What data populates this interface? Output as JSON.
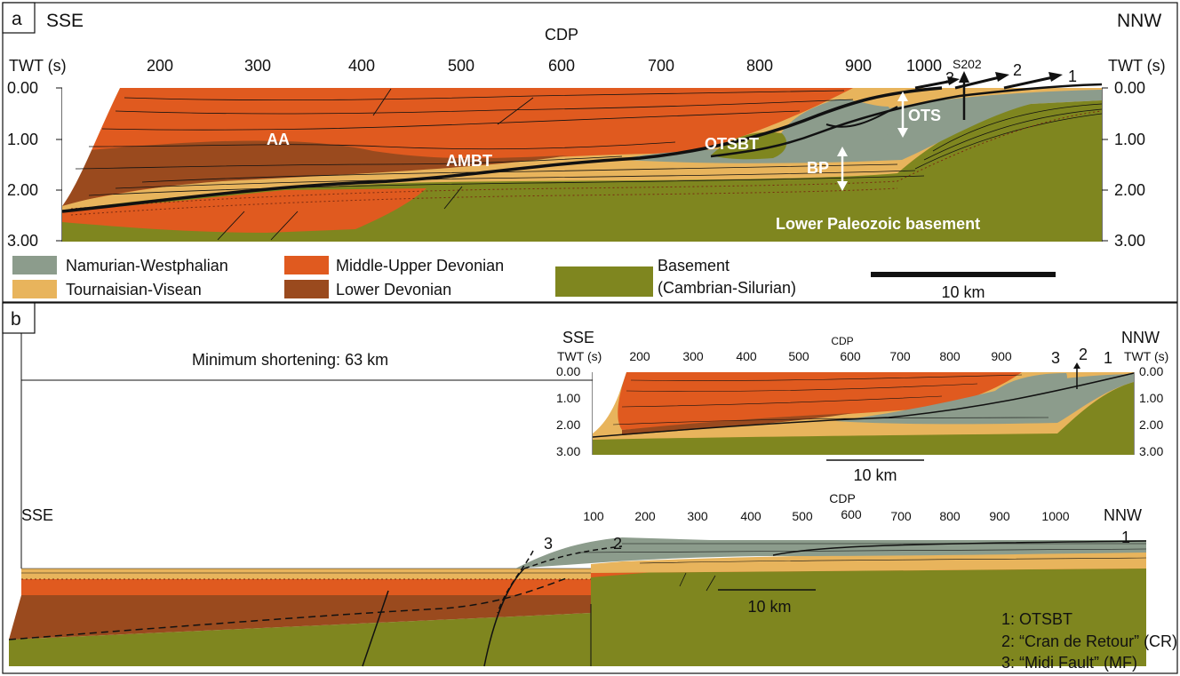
{
  "colors": {
    "namurian": "#8c9c8c",
    "tournaisian": "#e8b45c",
    "middle_upper_devonian": "#e05a1f",
    "lower_devonian": "#9a4a1e",
    "basement": "#7f861f",
    "line": "#111111",
    "white": "#ffffff"
  },
  "panel_a": {
    "letter": "a",
    "left_dir": "SSE",
    "right_dir": "NNW",
    "cdp_label": "CDP",
    "twt_left": "TWT (s)",
    "twt_right": "TWT (s)",
    "cdp_ticks": [
      "200",
      "300",
      "400",
      "500",
      "600",
      "700",
      "800",
      "900",
      "1000"
    ],
    "twt_ticks": [
      "0.00",
      "1.00",
      "2.00",
      "3.00"
    ],
    "labels": {
      "aa": "AA",
      "ambt": "AMBT",
      "otsbt": "OTSBT",
      "ots": "OTS",
      "bp": "BP",
      "s202": "S202",
      "basement": "Lower Paleozoic basement",
      "f1": "1",
      "f2": "2",
      "f3": "3"
    },
    "legend": {
      "namurian": "Namurian-Westphalian",
      "tournaisian": "Tournaisian-Visean",
      "mud": "Middle-Upper Devonian",
      "lower_dev": "Lower Devonian",
      "basement_1": "Basement",
      "basement_2": "(Cambrian-Silurian)"
    },
    "scale": "10 km"
  },
  "panel_b": {
    "letter": "b",
    "shortening": "Minimum shortening: 63 km",
    "inset": {
      "left_dir": "SSE",
      "right_dir": "NNW",
      "cdp_label": "CDP",
      "twt_left": "TWT (s)",
      "twt_right": "TWT (s)",
      "cdp_ticks": [
        "200",
        "300",
        "400",
        "500",
        "600",
        "700",
        "800",
        "900"
      ],
      "twt_ticks": [
        "0.00",
        "1.00",
        "2.00",
        "3.00"
      ],
      "f1": "1",
      "f2": "2",
      "f3": "3",
      "scale": "10 km"
    },
    "restored": {
      "left_dir": "SSE",
      "right_dir": "NNW",
      "cdp_label": "CDP",
      "cdp_ticks": [
        "100",
        "200",
        "300",
        "400",
        "500",
        "600",
        "700",
        "800",
        "900",
        "1000"
      ],
      "f1": "1",
      "f2": "2",
      "f3": "3",
      "scale": "10 km"
    },
    "fault_legend": [
      "1: OTSBT",
      "2: “Cran de Retour” (CR)",
      "3: “Midi Fault” (MF)"
    ]
  }
}
